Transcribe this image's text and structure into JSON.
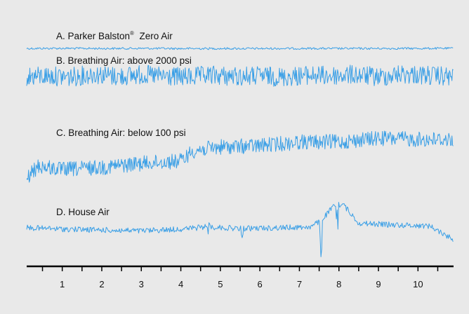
{
  "chart_data": {
    "type": "line",
    "title": "",
    "xlabel": "",
    "ylabel": "",
    "x_ticks": [
      "1",
      "2",
      "3",
      "4",
      "5",
      "6",
      "7",
      "8",
      "9",
      "10"
    ],
    "x_range": [
      0.1,
      10.9
    ],
    "line_color": "#3a9fe6",
    "series": [
      {
        "name": "A. Parker Balston® Zero Air",
        "label_main": "A.  Parker Balston",
        "label_sup": "®",
        "label_tail": " Zero Air",
        "x": [
          0.1,
          1.0,
          2.0,
          3.0,
          4.0,
          5.0,
          6.0,
          7.0,
          8.0,
          9.0,
          10.0,
          10.9
        ],
        "y": [
          0.25,
          0.3,
          0.22,
          0.28,
          0.2,
          0.22,
          0.2,
          0.25,
          0.22,
          0.24,
          0.26,
          0.28
        ]
      },
      {
        "name": "B. Breathing Air: above 2000 psi",
        "label_main": "B.  Breathing Air: above 2000 psi",
        "x": [
          0.1,
          0.7,
          1.2,
          1.8,
          2.4,
          3.0,
          3.6,
          4.2,
          4.8,
          5.4,
          6.0,
          6.6,
          7.2,
          7.8,
          8.4,
          9.0,
          9.6,
          10.2,
          10.9
        ],
        "y": [
          3.2,
          3.3,
          3.1,
          3.6,
          3.2,
          3.5,
          3.2,
          3.1,
          3.4,
          3.2,
          3.3,
          3.1,
          3.4,
          3.3,
          3.5,
          3.1,
          3.6,
          3.4,
          3.1
        ]
      },
      {
        "name": "C. Breathing Air: below 100 psi",
        "label_main": "C.  Breathing Air: below 100 psi",
        "x": [
          0.1,
          0.4,
          1.0,
          2.0,
          3.0,
          4.0,
          4.3,
          5.0,
          6.0,
          7.0,
          8.0,
          9.0,
          10.0,
          10.9
        ],
        "y": [
          0.4,
          1.4,
          1.1,
          1.3,
          1.6,
          1.8,
          2.6,
          2.9,
          3.0,
          3.3,
          3.3,
          3.6,
          3.5,
          3.5
        ]
      },
      {
        "name": "D. House Air",
        "label_main": "D.  House Air",
        "x": [
          0.1,
          1.0,
          2.0,
          3.0,
          4.0,
          4.7,
          5.5,
          6.5,
          7.3,
          7.55,
          7.9,
          8.1,
          8.5,
          9.5,
          10.3,
          10.9
        ],
        "y": [
          0.7,
          0.55,
          0.45,
          0.35,
          0.55,
          0.8,
          0.6,
          0.7,
          0.8,
          1.5,
          3.2,
          3.3,
          1.2,
          1.0,
          0.9,
          -0.6
        ],
        "spikes": [
          {
            "x": 4.72,
            "y": 1.8
          },
          {
            "x": 5.55,
            "y": -0.3
          },
          {
            "x": 7.55,
            "y": -3.0
          },
          {
            "x": 7.95,
            "y": 3.3
          }
        ]
      }
    ],
    "grid": false,
    "legend": "none"
  }
}
